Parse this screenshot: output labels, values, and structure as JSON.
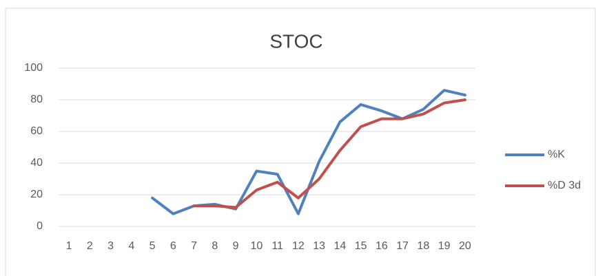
{
  "chart_data": {
    "type": "line",
    "title": "STOC",
    "categories": [
      "1",
      "2",
      "3",
      "4",
      "5",
      "6",
      "7",
      "8",
      "9",
      "10",
      "11",
      "12",
      "13",
      "14",
      "15",
      "16",
      "17",
      "18",
      "19",
      "20"
    ],
    "series": [
      {
        "name": "%K",
        "color": "#4f81bd",
        "values": [
          null,
          null,
          null,
          null,
          18,
          8,
          13,
          14,
          11,
          35,
          33,
          8,
          41,
          66,
          77,
          73,
          68,
          74,
          86,
          83
        ]
      },
      {
        "name": "%D 3d",
        "color": "#c0504d",
        "values": [
          null,
          null,
          null,
          null,
          null,
          null,
          13,
          13,
          12,
          23,
          28,
          18,
          30,
          48,
          63,
          68,
          68,
          71,
          78,
          80
        ]
      }
    ],
    "ylim": [
      0,
      100
    ],
    "yticks": [
      0,
      20,
      40,
      60,
      80,
      100
    ],
    "grid": true,
    "legend": "right"
  }
}
